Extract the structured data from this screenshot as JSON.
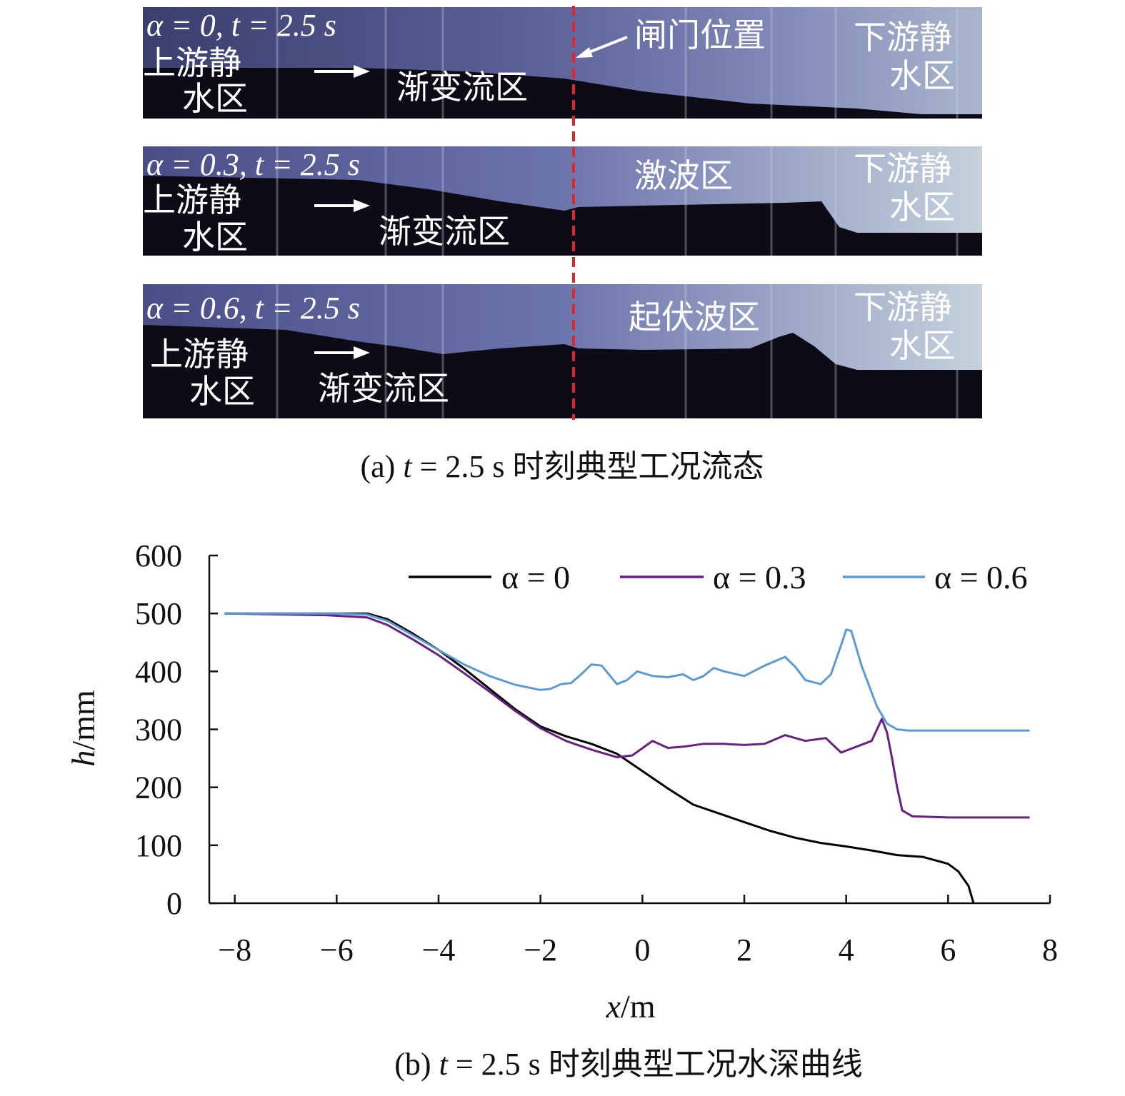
{
  "panel_a": {
    "caption_prefix": "(a) ",
    "caption_t": "t",
    "caption_rest": " = 2.5 s 时刻典型工况流态",
    "gate_label": "闸门位置",
    "strips": [
      {
        "alpha_label": "α = 0, t = 2.5 s",
        "upstream_line1": "上游静",
        "upstream_line2": "水区",
        "gradual_label": "渐变流区",
        "middle_label": "",
        "downstream_line1": "下游静",
        "downstream_line2": "水区"
      },
      {
        "alpha_label": "α = 0.3, t = 2.5 s",
        "upstream_line1": "上游静",
        "upstream_line2": "水区",
        "gradual_label": "渐变流区",
        "middle_label": "激波区",
        "downstream_line1": "下游静",
        "downstream_line2": "水区"
      },
      {
        "alpha_label": "α = 0.6, t = 2.5 s",
        "upstream_line1": "上游静",
        "upstream_line2": "水区",
        "gradual_label": "渐变流区",
        "middle_label": "起伏波区",
        "downstream_line1": "下游静",
        "downstream_line2": "水区"
      }
    ]
  },
  "chart_data": {
    "type": "line",
    "title": "",
    "caption_prefix": "(b) ",
    "caption_t": "t",
    "caption_rest": " = 2.5 s 时刻典型工况水深曲线",
    "xlabel_var": "x",
    "xlabel_unit": "/m",
    "ylabel_var": "h",
    "ylabel_unit": "/mm",
    "xlim": [
      -8.5,
      8
    ],
    "ylim": [
      0,
      600
    ],
    "xticks": [
      -8,
      -6,
      -4,
      -2,
      0,
      2,
      4,
      6,
      8
    ],
    "xtick_labels": [
      "−8",
      "−6",
      "−4",
      "−2",
      "0",
      "2",
      "4",
      "6",
      "8"
    ],
    "yticks": [
      0,
      100,
      200,
      300,
      400,
      500,
      600
    ],
    "ytick_labels": [
      "0",
      "100",
      "200",
      "300",
      "400",
      "500",
      "600"
    ],
    "grid": false,
    "legend_position": "top-right",
    "series": [
      {
        "name": "α = 0",
        "color": "#000000",
        "x": [
          -8.2,
          -6,
          -5.4,
          -5,
          -4.5,
          -4,
          -3.5,
          -3,
          -2.5,
          -2,
          -1.5,
          -1,
          -0.5,
          0,
          0.5,
          1,
          1.5,
          2,
          2.5,
          3,
          3.5,
          4,
          4.5,
          5,
          5.5,
          6,
          6.2,
          6.4,
          6.5
        ],
        "y": [
          500,
          500,
          500,
          490,
          465,
          437,
          405,
          370,
          335,
          305,
          288,
          275,
          258,
          228,
          198,
          170,
          155,
          140,
          125,
          113,
          104,
          98,
          91,
          83,
          80,
          68,
          55,
          30,
          0
        ]
      },
      {
        "name": "α = 0.3",
        "color": "#6a1f82",
        "x": [
          -8.2,
          -6.2,
          -5.4,
          -5,
          -4.5,
          -4,
          -3.5,
          -3,
          -2.5,
          -2,
          -1.5,
          -1,
          -0.5,
          -0.2,
          0.2,
          0.5,
          0.8,
          1.2,
          1.6,
          2,
          2.4,
          2.8,
          3.2,
          3.6,
          3.9,
          4.2,
          4.5,
          4.7,
          4.8,
          4.9,
          5,
          5.1,
          5.3,
          6,
          7,
          7.6
        ],
        "y": [
          500,
          497,
          493,
          480,
          455,
          428,
          397,
          365,
          332,
          302,
          280,
          265,
          252,
          255,
          280,
          268,
          270,
          275,
          275,
          273,
          275,
          290,
          280,
          285,
          260,
          270,
          280,
          318,
          295,
          250,
          200,
          160,
          150,
          148,
          148,
          148
        ]
      },
      {
        "name": "α = 0.6",
        "color": "#5b9bd5",
        "x": [
          -8.2,
          -6,
          -5.4,
          -5,
          -4.5,
          -4,
          -3.5,
          -3,
          -2.5,
          -2,
          -1.8,
          -1.6,
          -1.4,
          -1.2,
          -1,
          -0.8,
          -0.5,
          -0.3,
          -0.1,
          0.2,
          0.5,
          0.8,
          1,
          1.2,
          1.4,
          1.6,
          2,
          2.4,
          2.8,
          3,
          3.2,
          3.5,
          3.7,
          3.9,
          4,
          4.1,
          4.3,
          4.6,
          4.8,
          5,
          5.2,
          6,
          7,
          7.6
        ],
        "y": [
          500,
          500,
          498,
          487,
          462,
          437,
          412,
          392,
          377,
          368,
          370,
          378,
          380,
          395,
          412,
          410,
          378,
          385,
          400,
          392,
          390,
          395,
          385,
          392,
          406,
          400,
          392,
          410,
          425,
          408,
          385,
          378,
          395,
          445,
          472,
          470,
          410,
          340,
          310,
          300,
          298,
          298,
          298,
          298
        ]
      }
    ]
  }
}
